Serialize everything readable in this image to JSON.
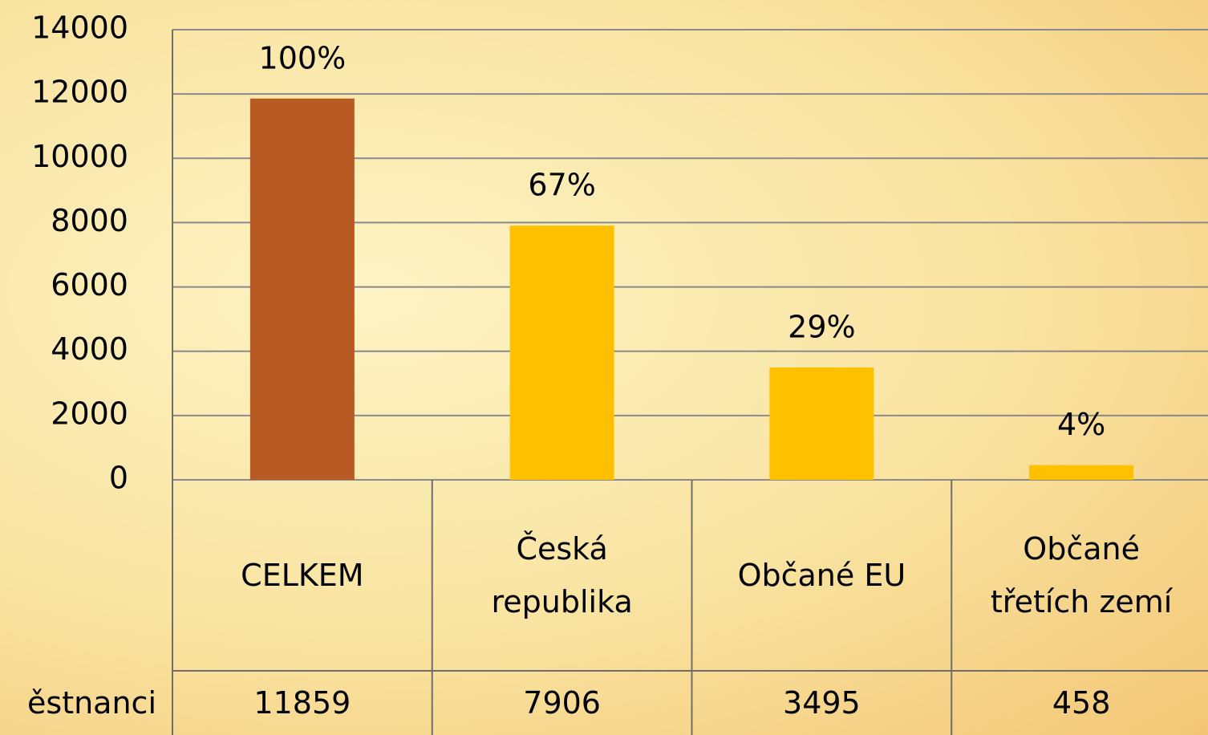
{
  "chart_data": {
    "type": "bar",
    "categories": [
      "CELKEM",
      "Česká republika",
      "Občané EU",
      "Občané třetích zemí"
    ],
    "series": [
      {
        "name": "ěstnanci",
        "values": [
          11859,
          7906,
          3495,
          458
        ],
        "value_labels": [
          "100%",
          "67%",
          "29%",
          "4%"
        ],
        "colors": [
          "#b85a24",
          "#ffc000",
          "#ffc000",
          "#ffc000"
        ]
      }
    ],
    "ylim": [
      0,
      14000
    ],
    "yticks": [
      0,
      2000,
      4000,
      6000,
      8000,
      10000,
      12000,
      14000
    ],
    "grid": true
  }
}
